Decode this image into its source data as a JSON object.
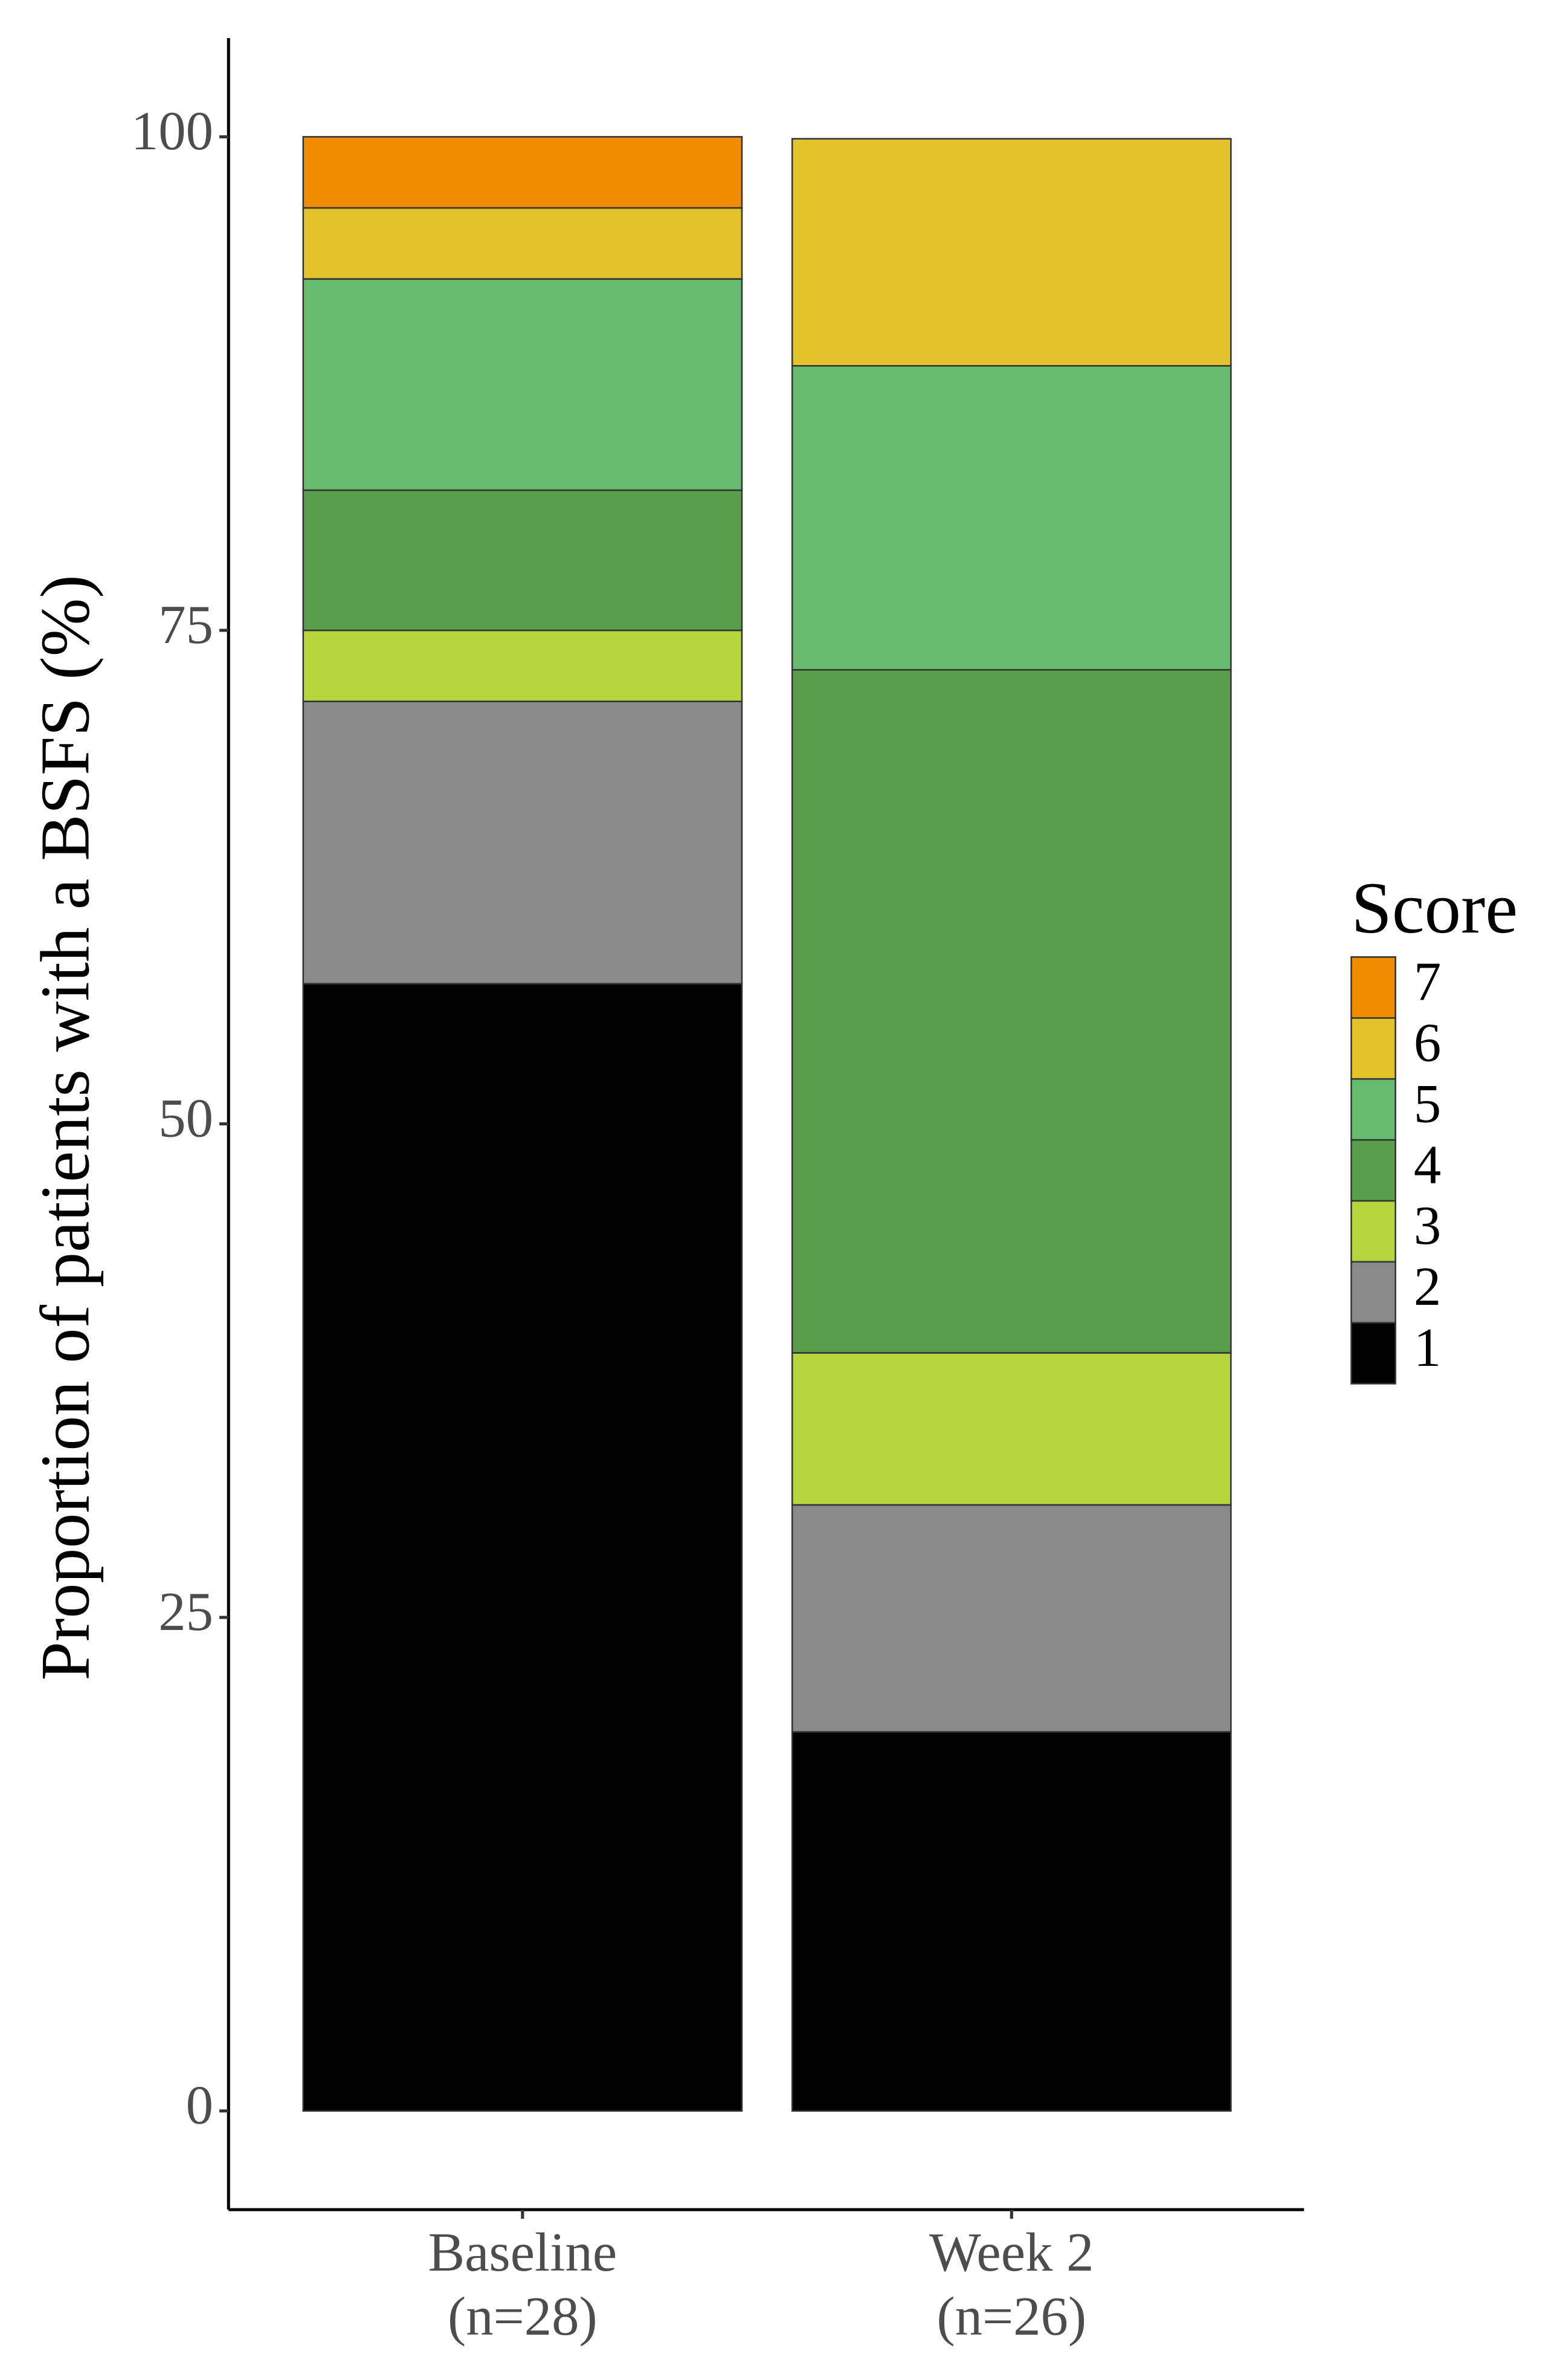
{
  "chart_data": {
    "type": "stacked-bar",
    "y_label": "Proportion of patients with a BSFS (%)",
    "legend_title": "Score",
    "legend_position": "right",
    "categories": [
      "Baseline\n(n=28)",
      "Week 2\n(n=26)"
    ],
    "series": [
      {
        "name": "1",
        "color": "#000000",
        "values": [
          57.1,
          19.2
        ]
      },
      {
        "name": "2",
        "color": "#8a8a8a",
        "values": [
          14.3,
          11.5
        ]
      },
      {
        "name": "3",
        "color": "#b5d53d",
        "values": [
          3.6,
          7.7
        ]
      },
      {
        "name": "4",
        "color": "#5a9e4c",
        "values": [
          7.1,
          34.6
        ]
      },
      {
        "name": "5",
        "color": "#66bb6e",
        "values": [
          10.7,
          15.4
        ]
      },
      {
        "name": "6",
        "color": "#e4c22a",
        "values": [
          3.6,
          11.5
        ]
      },
      {
        "name": "7",
        "color": "#f08c00",
        "values": [
          3.6,
          0
        ]
      }
    ],
    "ylim": [
      -5,
      105
    ],
    "yticks": [
      0,
      25,
      50,
      75,
      100
    ]
  }
}
